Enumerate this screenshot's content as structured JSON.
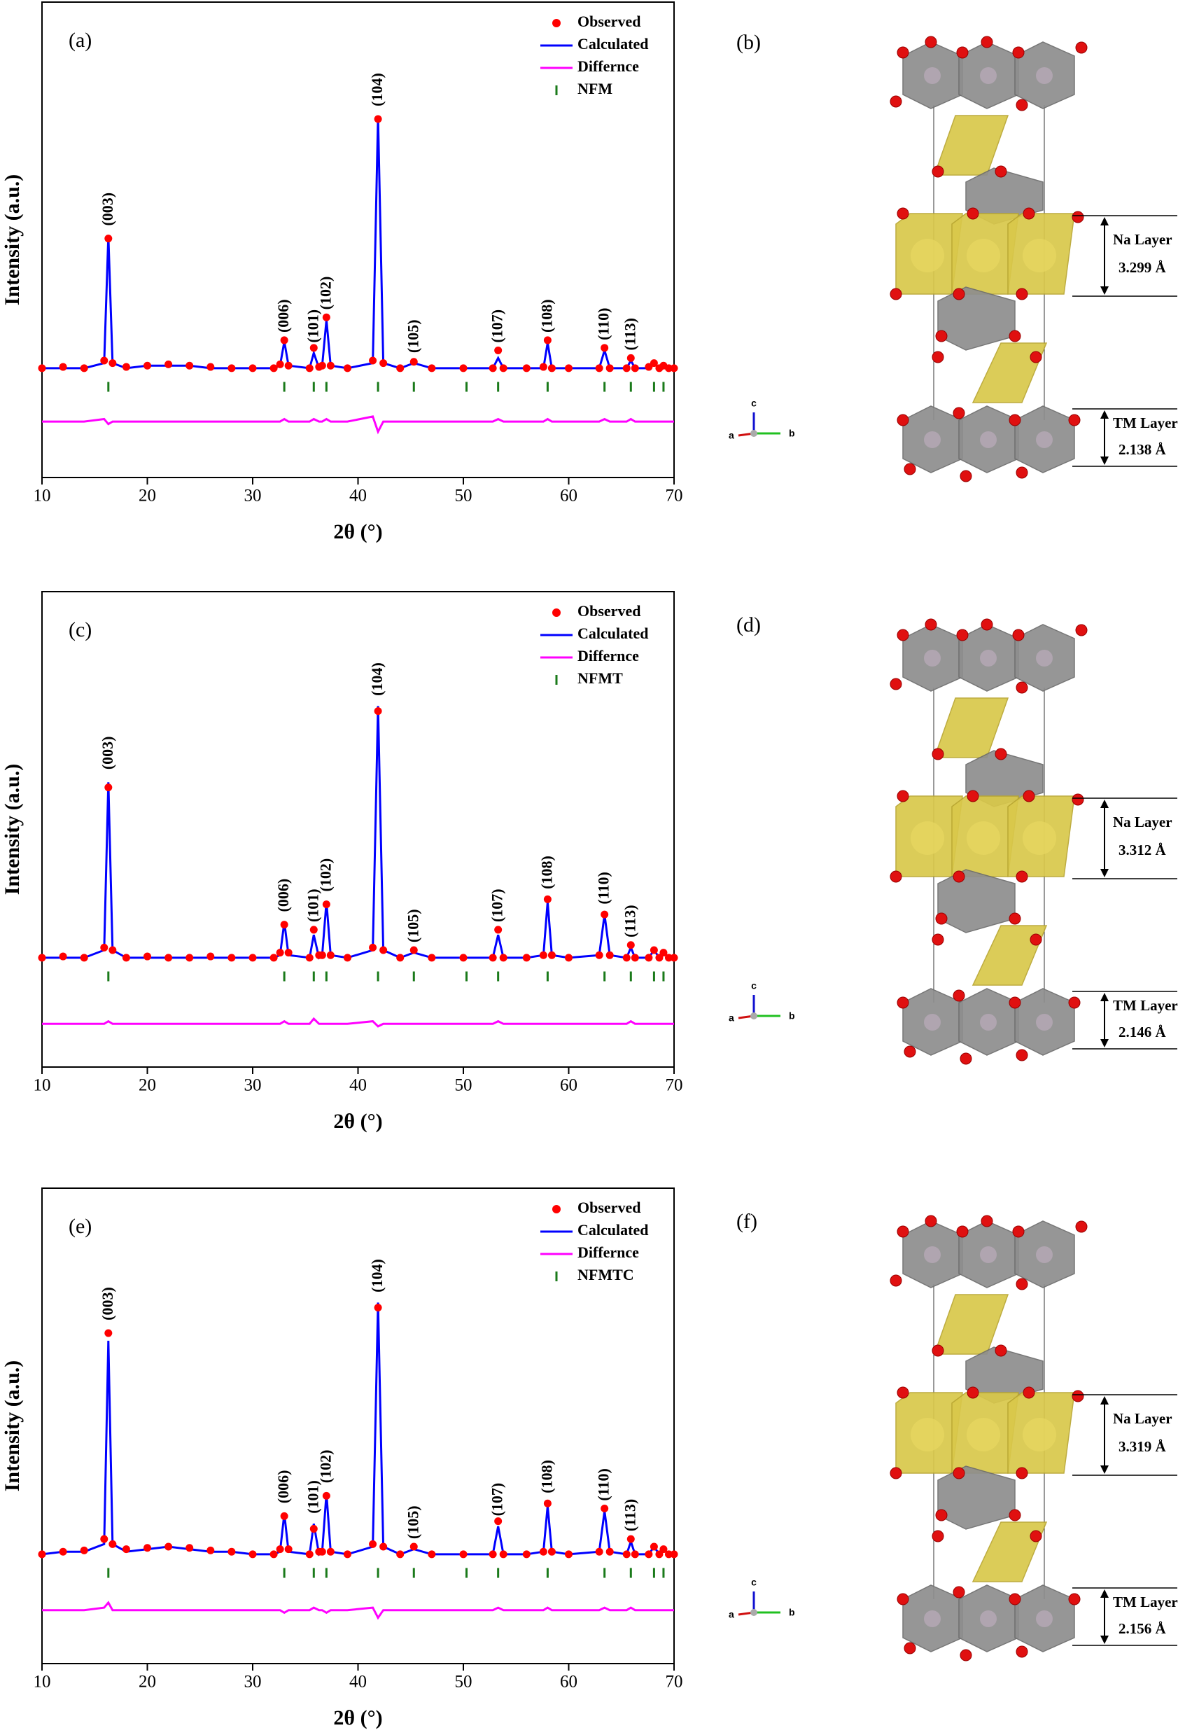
{
  "chart_data": [
    {
      "type": "line",
      "panel_label": "(a)",
      "xlabel": "2θ (°)",
      "ylabel": "Intensity (a.u.)",
      "xlim": [
        10,
        70
      ],
      "xticks": [
        10,
        20,
        30,
        40,
        50,
        60,
        70
      ],
      "ylim": [
        -0.42,
        1.45
      ],
      "x": [
        10,
        12,
        14,
        15.9,
        16.3,
        16.7,
        18,
        20,
        22,
        24,
        26,
        28,
        30,
        32,
        32.6,
        33.0,
        33.4,
        35.4,
        35.8,
        36.3,
        36.6,
        37.0,
        37.4,
        39,
        41.4,
        41.9,
        42.4,
        44,
        45.3,
        47,
        50,
        52.8,
        53.3,
        53.8,
        56,
        57.6,
        58.0,
        58.4,
        60,
        62.9,
        63.4,
        63.9,
        65.5,
        65.9,
        66.3,
        67.6,
        68.1,
        68.6,
        69.0,
        69.5,
        70
      ],
      "series": [
        {
          "name": "Observed",
          "color": "#ff0000",
          "style": "dots",
          "values": [
            0.01,
            0.015,
            0.01,
            0.04,
            0.52,
            0.03,
            0.015,
            0.02,
            0.025,
            0.02,
            0.015,
            0.01,
            0.01,
            0.01,
            0.025,
            0.12,
            0.02,
            0.01,
            0.09,
            0.015,
            0.02,
            0.21,
            0.02,
            0.01,
            0.04,
            0.99,
            0.03,
            0.01,
            0.035,
            0.01,
            0.01,
            0.01,
            0.08,
            0.01,
            0.01,
            0.015,
            0.12,
            0.01,
            0.01,
            0.01,
            0.09,
            0.01,
            0.01,
            0.05,
            0.01,
            0.015,
            0.03,
            0.01,
            0.02,
            0.01,
            0.01
          ]
        },
        {
          "name": "Calculated",
          "color": "#0000ff",
          "style": "line",
          "values": [
            0.01,
            0.01,
            0.01,
            0.03,
            0.53,
            0.03,
            0.01,
            0.02,
            0.02,
            0.02,
            0.01,
            0.01,
            0.01,
            0.01,
            0.02,
            0.115,
            0.02,
            0.01,
            0.07,
            0.01,
            0.02,
            0.2,
            0.02,
            0.01,
            0.03,
            1.0,
            0.03,
            0.01,
            0.03,
            0.01,
            0.01,
            0.01,
            0.05,
            0.01,
            0.01,
            0.01,
            0.11,
            0.01,
            0.01,
            0.01,
            0.08,
            0.01,
            0.01,
            0.04,
            0.01,
            0.01,
            0.03,
            0.01,
            0.02,
            0.01,
            0.01
          ]
        },
        {
          "name": "Differnce",
          "color": "#ff00ff",
          "style": "line",
          "values": [
            -0.2,
            -0.2,
            -0.2,
            -0.19,
            -0.21,
            -0.2,
            -0.2,
            -0.2,
            -0.2,
            -0.2,
            -0.2,
            -0.2,
            -0.2,
            -0.2,
            -0.2,
            -0.19,
            -0.2,
            -0.2,
            -0.19,
            -0.2,
            -0.2,
            -0.19,
            -0.2,
            -0.2,
            -0.18,
            -0.24,
            -0.2,
            -0.2,
            -0.2,
            -0.2,
            -0.2,
            -0.2,
            -0.19,
            -0.2,
            -0.2,
            -0.2,
            -0.19,
            -0.2,
            -0.2,
            -0.2,
            -0.19,
            -0.2,
            -0.2,
            -0.19,
            -0.2,
            -0.2,
            -0.2,
            -0.2,
            -0.2,
            -0.2,
            -0.2
          ]
        }
      ],
      "reflections": {
        "name": "NFM",
        "color": "#1a7a1a",
        "x": [
          16.3,
          33.0,
          35.8,
          37.0,
          41.9,
          45.3,
          50.3,
          53.3,
          58.0,
          63.4,
          65.9,
          68.1,
          69.0
        ]
      },
      "annotations": [
        {
          "text": "(003)",
          "x": 16.3,
          "y": 0.57
        },
        {
          "text": "(006)",
          "x": 33.0,
          "y": 0.15
        },
        {
          "text": "(101)",
          "x": 35.8,
          "y": 0.11
        },
        {
          "text": "(102)",
          "x": 37.0,
          "y": 0.24
        },
        {
          "text": "(104)",
          "x": 41.9,
          "y": 1.04
        },
        {
          "text": "(105)",
          "x": 45.3,
          "y": 0.07
        },
        {
          "text": "(107)",
          "x": 53.3,
          "y": 0.11
        },
        {
          "text": "(108)",
          "x": 58.0,
          "y": 0.15
        },
        {
          "text": "(110)",
          "x": 63.4,
          "y": 0.12
        },
        {
          "text": "(113)",
          "x": 65.9,
          "y": 0.08
        }
      ]
    },
    {
      "type": "line",
      "panel_label": "(c)",
      "xlabel": "2θ (°)",
      "ylabel": "Intensity (a.u.)",
      "xlim": [
        10,
        70
      ],
      "xticks": [
        10,
        20,
        30,
        40,
        50,
        60,
        70
      ],
      "ylim": [
        -0.42,
        1.45
      ],
      "x": [
        10,
        12,
        14,
        15.9,
        16.3,
        16.7,
        18,
        20,
        22,
        24,
        26,
        28,
        30,
        32,
        32.6,
        33.0,
        33.4,
        35.4,
        35.8,
        36.3,
        36.6,
        37.0,
        37.4,
        39,
        41.4,
        41.9,
        42.4,
        44,
        45.3,
        47,
        50,
        52.8,
        53.3,
        53.8,
        56,
        57.6,
        58.0,
        58.4,
        60,
        62.9,
        63.4,
        63.9,
        65.5,
        65.9,
        66.3,
        67.6,
        68.1,
        68.6,
        69.0,
        69.5,
        70
      ],
      "series": [
        {
          "name": "Observed",
          "color": "#ff0000",
          "style": "dots",
          "values": [
            0.01,
            0.015,
            0.01,
            0.05,
            0.68,
            0.04,
            0.01,
            0.015,
            0.01,
            0.01,
            0.015,
            0.01,
            0.01,
            0.01,
            0.03,
            0.14,
            0.03,
            0.01,
            0.12,
            0.02,
            0.02,
            0.22,
            0.02,
            0.01,
            0.05,
            0.98,
            0.04,
            0.01,
            0.04,
            0.01,
            0.01,
            0.01,
            0.12,
            0.01,
            0.01,
            0.02,
            0.24,
            0.02,
            0.01,
            0.02,
            0.18,
            0.02,
            0.01,
            0.06,
            0.01,
            0.01,
            0.04,
            0.01,
            0.03,
            0.01,
            0.01
          ]
        },
        {
          "name": "Calculated",
          "color": "#0000ff",
          "style": "line",
          "values": [
            0.01,
            0.01,
            0.01,
            0.04,
            0.7,
            0.04,
            0.01,
            0.01,
            0.01,
            0.01,
            0.01,
            0.01,
            0.01,
            0.01,
            0.02,
            0.15,
            0.02,
            0.01,
            0.1,
            0.01,
            0.02,
            0.23,
            0.02,
            0.01,
            0.04,
            1.0,
            0.04,
            0.01,
            0.03,
            0.01,
            0.01,
            0.01,
            0.1,
            0.01,
            0.01,
            0.02,
            0.23,
            0.02,
            0.01,
            0.02,
            0.18,
            0.02,
            0.01,
            0.05,
            0.01,
            0.01,
            0.04,
            0.01,
            0.03,
            0.01,
            0.01
          ]
        },
        {
          "name": "Differnce",
          "color": "#ff00ff",
          "style": "line",
          "values": [
            -0.25,
            -0.25,
            -0.25,
            -0.25,
            -0.24,
            -0.25,
            -0.25,
            -0.25,
            -0.25,
            -0.25,
            -0.25,
            -0.25,
            -0.25,
            -0.25,
            -0.25,
            -0.24,
            -0.25,
            -0.25,
            -0.23,
            -0.25,
            -0.25,
            -0.25,
            -0.25,
            -0.25,
            -0.24,
            -0.26,
            -0.25,
            -0.25,
            -0.25,
            -0.25,
            -0.25,
            -0.25,
            -0.24,
            -0.25,
            -0.25,
            -0.25,
            -0.25,
            -0.25,
            -0.25,
            -0.25,
            -0.25,
            -0.25,
            -0.25,
            -0.24,
            -0.25,
            -0.25,
            -0.25,
            -0.25,
            -0.25,
            -0.25,
            -0.25
          ]
        }
      ],
      "reflections": {
        "name": "NFMT",
        "color": "#1a7a1a",
        "x": [
          16.3,
          33.0,
          35.8,
          37.0,
          41.9,
          45.3,
          50.3,
          53.3,
          58.0,
          63.4,
          65.9,
          68.1,
          69.0
        ]
      },
      "annotations": [
        {
          "text": "(003)",
          "x": 16.3,
          "y": 0.75
        },
        {
          "text": "(006)",
          "x": 33.0,
          "y": 0.19
        },
        {
          "text": "(101)",
          "x": 35.8,
          "y": 0.15
        },
        {
          "text": "(102)",
          "x": 37.0,
          "y": 0.27
        },
        {
          "text": "(104)",
          "x": 41.9,
          "y": 1.04
        },
        {
          "text": "(105)",
          "x": 45.3,
          "y": 0.07
        },
        {
          "text": "(107)",
          "x": 53.3,
          "y": 0.15
        },
        {
          "text": "(108)",
          "x": 58.0,
          "y": 0.28
        },
        {
          "text": "(110)",
          "x": 63.4,
          "y": 0.22
        },
        {
          "text": "(113)",
          "x": 65.9,
          "y": 0.09
        }
      ]
    },
    {
      "type": "line",
      "panel_label": "(e)",
      "xlabel": "2θ (°)",
      "ylabel": "Intensity (a.u.)",
      "xlim": [
        10,
        70
      ],
      "xticks": [
        10,
        20,
        30,
        40,
        50,
        60,
        70
      ],
      "ylim": [
        -0.42,
        1.45
      ],
      "x": [
        10,
        12,
        14,
        15.9,
        16.3,
        16.7,
        18,
        20,
        22,
        24,
        26,
        28,
        30,
        32,
        32.6,
        33.0,
        33.4,
        35.4,
        35.8,
        36.3,
        36.6,
        37.0,
        37.4,
        39,
        41.4,
        41.9,
        42.4,
        44,
        45.3,
        47,
        50,
        52.8,
        53.3,
        53.8,
        56,
        57.6,
        58.0,
        58.4,
        60,
        62.9,
        63.4,
        63.9,
        65.5,
        65.9,
        66.3,
        67.6,
        68.1,
        68.6,
        69.0,
        69.5,
        70
      ],
      "series": [
        {
          "name": "Observed",
          "color": "#ff0000",
          "style": "dots",
          "values": [
            0.01,
            0.02,
            0.025,
            0.07,
            0.88,
            0.05,
            0.03,
            0.035,
            0.04,
            0.035,
            0.025,
            0.02,
            0.01,
            0.01,
            0.03,
            0.16,
            0.03,
            0.01,
            0.11,
            0.02,
            0.02,
            0.24,
            0.02,
            0.01,
            0.05,
            0.98,
            0.04,
            0.01,
            0.04,
            0.01,
            0.01,
            0.01,
            0.14,
            0.01,
            0.01,
            0.02,
            0.21,
            0.02,
            0.01,
            0.02,
            0.19,
            0.02,
            0.01,
            0.07,
            0.01,
            0.01,
            0.04,
            0.01,
            0.03,
            0.01,
            0.01
          ]
        },
        {
          "name": "Calculated",
          "color": "#0000ff",
          "style": "line",
          "values": [
            0.01,
            0.02,
            0.02,
            0.05,
            0.85,
            0.05,
            0.02,
            0.03,
            0.04,
            0.03,
            0.02,
            0.02,
            0.01,
            0.01,
            0.02,
            0.17,
            0.02,
            0.01,
            0.13,
            0.01,
            0.02,
            0.25,
            0.02,
            0.01,
            0.04,
            1.0,
            0.04,
            0.01,
            0.03,
            0.01,
            0.01,
            0.01,
            0.12,
            0.01,
            0.01,
            0.02,
            0.2,
            0.02,
            0.01,
            0.02,
            0.18,
            0.02,
            0.01,
            0.06,
            0.01,
            0.01,
            0.04,
            0.01,
            0.03,
            0.01,
            0.01
          ]
        },
        {
          "name": "Differnce",
          "color": "#ff00ff",
          "style": "line",
          "values": [
            -0.21,
            -0.21,
            -0.21,
            -0.2,
            -0.18,
            -0.21,
            -0.21,
            -0.21,
            -0.21,
            -0.21,
            -0.21,
            -0.21,
            -0.21,
            -0.21,
            -0.21,
            -0.22,
            -0.21,
            -0.21,
            -0.2,
            -0.21,
            -0.21,
            -0.22,
            -0.21,
            -0.21,
            -0.2,
            -0.24,
            -0.21,
            -0.21,
            -0.21,
            -0.21,
            -0.21,
            -0.21,
            -0.2,
            -0.21,
            -0.21,
            -0.21,
            -0.2,
            -0.21,
            -0.21,
            -0.21,
            -0.2,
            -0.21,
            -0.21,
            -0.2,
            -0.21,
            -0.21,
            -0.21,
            -0.21,
            -0.21,
            -0.21,
            -0.21
          ]
        }
      ],
      "reflections": {
        "name": "NFMTC",
        "color": "#1a7a1a",
        "x": [
          16.3,
          33.0,
          35.8,
          37.0,
          41.9,
          45.3,
          50.3,
          53.3,
          58.0,
          63.4,
          65.9,
          68.1,
          69.0
        ]
      },
      "annotations": [
        {
          "text": "(003)",
          "x": 16.3,
          "y": 0.93
        },
        {
          "text": "(006)",
          "x": 33.0,
          "y": 0.21
        },
        {
          "text": "(101)",
          "x": 35.8,
          "y": 0.17
        },
        {
          "text": "(102)",
          "x": 37.0,
          "y": 0.29
        },
        {
          "text": "(104)",
          "x": 41.9,
          "y": 1.04
        },
        {
          "text": "(105)",
          "x": 45.3,
          "y": 0.07
        },
        {
          "text": "(107)",
          "x": 53.3,
          "y": 0.16
        },
        {
          "text": "(108)",
          "x": 58.0,
          "y": 0.25
        },
        {
          "text": "(110)",
          "x": 63.4,
          "y": 0.22
        },
        {
          "text": "(113)",
          "x": 65.9,
          "y": 0.1
        }
      ]
    }
  ],
  "structures": [
    {
      "panel_label": "(b)",
      "axes": [
        "a",
        "b",
        "c"
      ],
      "na_layer": "Na Layer",
      "na_spacing": "3.299 Å",
      "tm_layer": "TM Layer",
      "tm_spacing": "2.138 Å"
    },
    {
      "panel_label": "(d)",
      "axes": [
        "a",
        "b",
        "c"
      ],
      "na_layer": "Na Layer",
      "na_spacing": "3.312 Å",
      "tm_layer": "TM Layer",
      "tm_spacing": "2.146 Å"
    },
    {
      "panel_label": "(f)",
      "axes": [
        "a",
        "b",
        "c"
      ],
      "na_layer": "Na Layer",
      "na_spacing": "3.319 Å",
      "tm_layer": "TM Layer",
      "tm_spacing": "2.156 Å"
    }
  ]
}
